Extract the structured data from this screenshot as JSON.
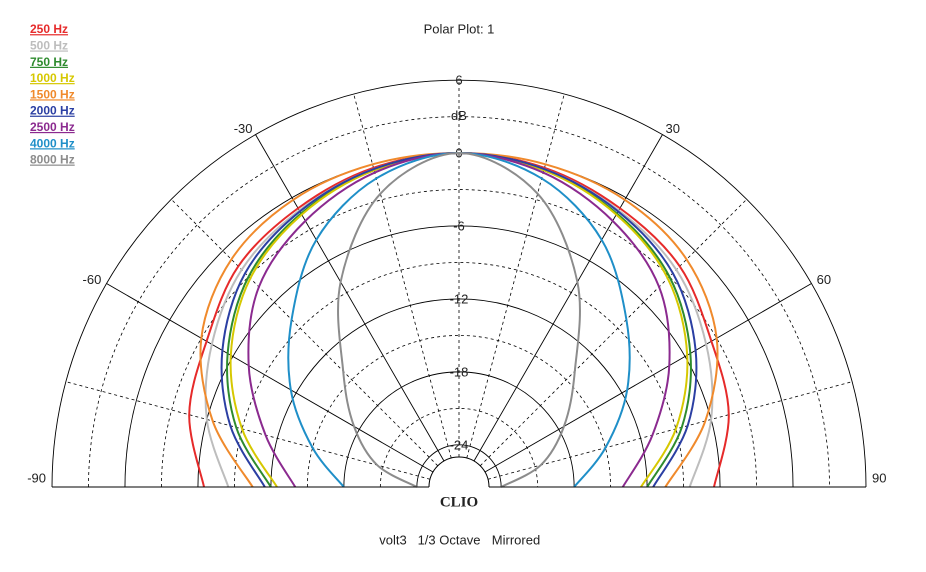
{
  "chart_data": {
    "type": "polar",
    "title": "Polar Plot: 1",
    "radial_axis_label": "dB",
    "brand": "CLIO",
    "footer": [
      "volt3",
      "1/3 Octave",
      "Mirrored"
    ],
    "x": [
      -90,
      -75,
      -60,
      -45,
      -30,
      -15,
      0,
      15,
      30,
      45,
      60,
      75,
      90
    ],
    "xlim": [
      -90,
      90
    ],
    "xticks": [
      -90,
      -60,
      -30,
      30,
      60,
      90
    ],
    "minor_xticks": [
      -75,
      -45,
      -15,
      0,
      15,
      45,
      75
    ],
    "ylim": [
      -25,
      6
    ],
    "yticks": [
      6,
      0,
      -6,
      -12,
      -18,
      -24
    ],
    "minor_yticks": [
      3,
      -3,
      -9,
      -15,
      -21
    ],
    "series": [
      {
        "name": "250 Hz",
        "color": "#e62a2a",
        "values": [
          -6.5,
          -4.5,
          -3.5,
          -1.8,
          -1,
          -0.3,
          0,
          -0.3,
          -1,
          -1.8,
          -3.5,
          -4.5,
          -6.5
        ]
      },
      {
        "name": "500 Hz",
        "color": "#bdbdbd",
        "values": [
          -8.5,
          -6,
          -4,
          -2.2,
          -1.2,
          -0.4,
          0,
          -0.4,
          -1.2,
          -2.2,
          -4,
          -6,
          -8.5
        ]
      },
      {
        "name": "750 Hz",
        "color": "#2e8b2e",
        "values": [
          -12,
          -8.5,
          -5.5,
          -3,
          -1.5,
          -0.5,
          0,
          -0.5,
          -1.5,
          -3,
          -5.5,
          -8.5,
          -12
        ]
      },
      {
        "name": "1000 Hz",
        "color": "#d6c800",
        "values": [
          -12.5,
          -9,
          -5.8,
          -3.2,
          -1.6,
          -0.5,
          0,
          -0.5,
          -1.6,
          -3.2,
          -5.8,
          -9,
          -12.5
        ]
      },
      {
        "name": "1500 Hz",
        "color": "#f08a2c",
        "values": [
          -10.5,
          -6.5,
          -3,
          -1,
          -0.2,
          0,
          0,
          0,
          -0.2,
          -1,
          -3,
          -6.5,
          -10.5
        ]
      },
      {
        "name": "2000 Hz",
        "color": "#2b3fa3",
        "values": [
          -11.5,
          -8,
          -5,
          -2.6,
          -1.3,
          -0.4,
          0,
          -0.4,
          -1.3,
          -2.6,
          -5,
          -8,
          -11.5
        ]
      },
      {
        "name": "2500 Hz",
        "color": "#8b2a8f",
        "values": [
          -14,
          -11,
          -7.5,
          -4.2,
          -2.2,
          -0.7,
          0,
          -0.7,
          -2.2,
          -4.2,
          -7.5,
          -11,
          -14
        ]
      },
      {
        "name": "4000 Hz",
        "color": "#1f8fc8",
        "values": [
          -18,
          -15,
          -11.5,
          -8,
          -4,
          -1.2,
          0,
          -1.2,
          -4,
          -8,
          -11.5,
          -15,
          -18
        ]
      },
      {
        "name": "8000 Hz",
        "color": "#8c8c8c",
        "values": [
          -24,
          -20.5,
          -17.5,
          -14,
          -8,
          -2.5,
          0,
          -2.5,
          -8,
          -14,
          -17.5,
          -20.5,
          -24
        ]
      }
    ]
  }
}
